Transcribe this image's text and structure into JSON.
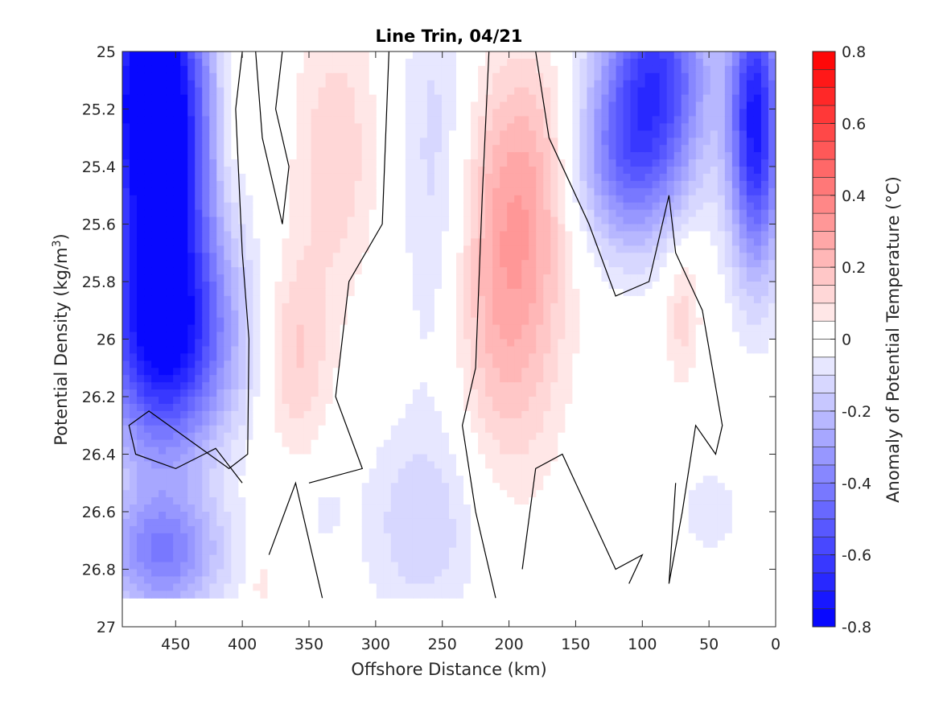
{
  "chart_data": {
    "type": "heatmap",
    "title": "Line Trin, 04/21",
    "xlabel": "Offshore Distance (km)",
    "ylabel_main": "Potential Density (kg/m",
    "ylabel_sup": "3",
    "ylabel_close": ")",
    "xlim": [
      490,
      0
    ],
    "ylim": [
      25,
      27
    ],
    "x_reversed": true,
    "y_reversed": true,
    "xticks": [
      450,
      400,
      350,
      300,
      250,
      200,
      150,
      100,
      50,
      0
    ],
    "xtick_labels": [
      "450",
      "400",
      "350",
      "300",
      "250",
      "200",
      "150",
      "100",
      "50",
      "0"
    ],
    "yticks": [
      25,
      25.2,
      25.4,
      25.6,
      25.8,
      26,
      26.2,
      26.4,
      26.6,
      26.8,
      27
    ],
    "ytick_labels": [
      "25",
      "25.2",
      "25.4",
      "25.6",
      "25.8",
      "26",
      "26.2",
      "26.4",
      "26.6",
      "26.8",
      "27"
    ],
    "colorbar": {
      "label": "Anomaly of Potential Temperature (°C)",
      "range": [
        -0.8,
        0.8
      ],
      "step": 0.05,
      "ticks": [
        0.8,
        0.6,
        0.4,
        0.2,
        0,
        -0.2,
        -0.4,
        -0.6,
        -0.8
      ],
      "tick_labels": [
        "0.8",
        "0.6",
        "0.4",
        "0.2",
        "0",
        "-0.2",
        "-0.4",
        "-0.6",
        "-0.8"
      ],
      "colormap": "blue-white-red"
    },
    "colors": {
      "negative": "#0000ff",
      "zero": "#ffffff",
      "positive": "#ff0000",
      "contour": "#000000"
    },
    "anomaly_features": [
      {
        "x": 460,
        "y": 25.55,
        "value": -0.68,
        "sx": 28,
        "sy": 0.55
      },
      {
        "x": 470,
        "y": 25.1,
        "value": -0.55,
        "sx": 25,
        "sy": 0.3
      },
      {
        "x": 455,
        "y": 26.0,
        "value": -0.4,
        "sx": 40,
        "sy": 0.25
      },
      {
        "x": 460,
        "y": 26.75,
        "value": -0.35,
        "sx": 32,
        "sy": 0.15
      },
      {
        "x": 330,
        "y": 25.35,
        "value": 0.14,
        "sx": 22,
        "sy": 0.35
      },
      {
        "x": 360,
        "y": 26.05,
        "value": 0.17,
        "sx": 18,
        "sy": 0.25
      },
      {
        "x": 410,
        "y": 25.25,
        "value": 0.09,
        "sx": 8,
        "sy": 0.25
      },
      {
        "x": 255,
        "y": 25.4,
        "value": -0.13,
        "sx": 18,
        "sy": 0.55
      },
      {
        "x": 265,
        "y": 26.65,
        "value": -0.14,
        "sx": 32,
        "sy": 0.25
      },
      {
        "x": 200,
        "y": 25.8,
        "value": 0.27,
        "sx": 28,
        "sy": 0.45
      },
      {
        "x": 180,
        "y": 25.4,
        "value": 0.12,
        "sx": 25,
        "sy": 0.3
      },
      {
        "x": 90,
        "y": 25.05,
        "value": -0.55,
        "sx": 28,
        "sy": 0.25
      },
      {
        "x": 15,
        "y": 25.25,
        "value": -0.72,
        "sx": 14,
        "sy": 0.35
      },
      {
        "x": 110,
        "y": 25.4,
        "value": -0.38,
        "sx": 30,
        "sy": 0.22
      },
      {
        "x": 70,
        "y": 25.9,
        "value": 0.13,
        "sx": 10,
        "sy": 0.18
      },
      {
        "x": 50,
        "y": 26.6,
        "value": -0.1,
        "sx": 15,
        "sy": 0.1
      },
      {
        "x": 340,
        "y": 26.6,
        "value": -0.06,
        "sx": 12,
        "sy": 0.1
      },
      {
        "x": 385,
        "y": 26.85,
        "value": 0.1,
        "sx": 6,
        "sy": 0.06
      }
    ],
    "zero_contours": [
      [
        [
          400,
          25
        ],
        [
          405,
          25.2
        ],
        [
          400,
          25.7
        ],
        [
          395,
          26.0
        ],
        [
          396,
          26.4
        ],
        [
          410,
          26.45
        ],
        [
          440,
          26.35
        ],
        [
          470,
          26.25
        ],
        [
          485,
          26.3
        ],
        [
          480,
          26.4
        ],
        [
          450,
          26.45
        ],
        [
          420,
          26.38
        ],
        [
          400,
          26.5
        ]
      ],
      [
        [
          390,
          25
        ],
        [
          385,
          25.3
        ],
        [
          370,
          25.6
        ],
        [
          365,
          25.4
        ],
        [
          375,
          25.2
        ],
        [
          370,
          25
        ]
      ],
      [
        [
          290,
          25
        ],
        [
          295,
          25.6
        ],
        [
          320,
          25.8
        ],
        [
          330,
          26.2
        ],
        [
          310,
          26.45
        ],
        [
          350,
          26.5
        ]
      ],
      [
        [
          215,
          25
        ],
        [
          220,
          25.5
        ],
        [
          225,
          26.1
        ],
        [
          235,
          26.3
        ],
        [
          225,
          26.6
        ],
        [
          210,
          26.9
        ]
      ],
      [
        [
          180,
          25
        ],
        [
          170,
          25.3
        ],
        [
          140,
          25.6
        ],
        [
          120,
          25.85
        ],
        [
          95,
          25.8
        ],
        [
          80,
          25.5
        ],
        [
          75,
          25.7
        ],
        [
          55,
          25.9
        ],
        [
          40,
          26.3
        ],
        [
          45,
          26.4
        ],
        [
          60,
          26.3
        ],
        [
          70,
          26.6
        ],
        [
          80,
          26.85
        ],
        [
          75,
          26.5
        ]
      ],
      [
        [
          190,
          26.8
        ],
        [
          180,
          26.45
        ],
        [
          160,
          26.4
        ],
        [
          150,
          26.5
        ],
        [
          140,
          26.6
        ],
        [
          130,
          26.7
        ],
        [
          120,
          26.8
        ],
        [
          100,
          26.75
        ],
        [
          110,
          26.85
        ]
      ],
      [
        [
          380,
          26.75
        ],
        [
          360,
          26.5
        ],
        [
          340,
          26.9
        ]
      ]
    ]
  }
}
